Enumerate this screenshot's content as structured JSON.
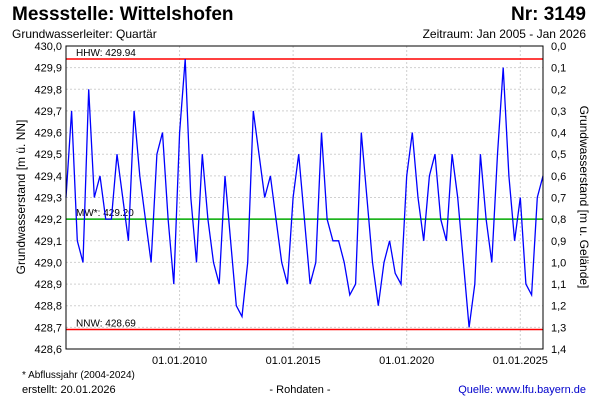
{
  "header": {
    "title": "Messstelle: Wittelshofen",
    "nr": "Nr: 3149",
    "subtitle": "Grundwasserleiter: Quartär",
    "period": "Zeitraum: Jan 2005 - Jan 2026"
  },
  "footer": {
    "footnote": "* Abflussjahr (2004-2024)",
    "created": "erstellt:  20.01.2026",
    "data_type": "- Rohdaten -",
    "source": "Quelle: www.lfu.bayern.de"
  },
  "colors": {
    "series": "#0000ff",
    "hhw": "#ff0000",
    "nnw": "#ff0000",
    "mw": "#00aa00",
    "grid": "#d0d0d0"
  },
  "chart_data": {
    "type": "line",
    "xlabel": "",
    "ylabel": "Grundwasserstand [m ü. NN]",
    "ylabel_right": "Grundwasserstand [m u. Gelände]",
    "xlim": [
      "2005-01",
      "2026-01"
    ],
    "ylim": [
      428.6,
      430.0
    ],
    "y_ticks": [
      "430,0",
      "429,9",
      "429,8",
      "429,7",
      "429,6",
      "429,5",
      "429,4",
      "429,3",
      "429,2",
      "429,1",
      "429,0",
      "428,9",
      "428,8",
      "428,7",
      "428,6"
    ],
    "y_ticks_right": [
      "0,0",
      "0,1",
      "0,2",
      "0,3",
      "0,4",
      "0,5",
      "0,6",
      "0,7",
      "0,8",
      "0,9",
      "1,0",
      "1,1",
      "1,2",
      "1,3",
      "1,4"
    ],
    "x_ticks": [
      {
        "label": "01.01.2010",
        "date": "2010-01-01"
      },
      {
        "label": "01.01.2015",
        "date": "2015-01-01"
      },
      {
        "label": "01.01.2020",
        "date": "2020-01-01"
      },
      {
        "label": "01.01.2025",
        "date": "2025-01-01"
      }
    ],
    "reference_lines": [
      {
        "label": "HHW: 429.94",
        "value": 429.94,
        "color": "#ff0000"
      },
      {
        "label": "MW*: 429.20",
        "value": 429.2,
        "color": "#00aa00"
      },
      {
        "label": "NNW: 428.69",
        "value": 428.69,
        "color": "#ff0000"
      }
    ],
    "grid": true,
    "series": [
      {
        "x": [
          "2005-01",
          "2005-04",
          "2005-07",
          "2005-10",
          "2006-01",
          "2006-04",
          "2006-07",
          "2006-10",
          "2007-01",
          "2007-04",
          "2007-07",
          "2007-10",
          "2008-01",
          "2008-04",
          "2008-07",
          "2008-10",
          "2009-01",
          "2009-04",
          "2009-07",
          "2009-10",
          "2010-01",
          "2010-04",
          "2010-07",
          "2010-10",
          "2011-01",
          "2011-04",
          "2011-07",
          "2011-10",
          "2012-01",
          "2012-04",
          "2012-07",
          "2012-10",
          "2013-01",
          "2013-04",
          "2013-07",
          "2013-10",
          "2014-01",
          "2014-04",
          "2014-07",
          "2014-10",
          "2015-01",
          "2015-04",
          "2015-07",
          "2015-10",
          "2016-01",
          "2016-04",
          "2016-07",
          "2016-10",
          "2017-01",
          "2017-04",
          "2017-07",
          "2017-10",
          "2018-01",
          "2018-04",
          "2018-07",
          "2018-10",
          "2019-01",
          "2019-04",
          "2019-07",
          "2019-10",
          "2020-01",
          "2020-04",
          "2020-07",
          "2020-10",
          "2021-01",
          "2021-04",
          "2021-07",
          "2021-10",
          "2022-01",
          "2022-04",
          "2022-07",
          "2022-10",
          "2023-01",
          "2023-04",
          "2023-07",
          "2023-10",
          "2024-01",
          "2024-04",
          "2024-07",
          "2024-10",
          "2025-01",
          "2025-04",
          "2025-07",
          "2025-10",
          "2026-01"
        ],
        "values": [
          429.3,
          429.7,
          429.1,
          429.0,
          429.8,
          429.3,
          429.4,
          429.2,
          429.2,
          429.5,
          429.3,
          429.1,
          429.7,
          429.4,
          429.2,
          429.0,
          429.5,
          429.6,
          429.2,
          428.9,
          429.6,
          429.94,
          429.3,
          429.0,
          429.5,
          429.2,
          429.0,
          428.9,
          429.4,
          429.1,
          428.8,
          428.75,
          429.0,
          429.7,
          429.5,
          429.3,
          429.4,
          429.2,
          429.0,
          428.9,
          429.3,
          429.5,
          429.2,
          428.9,
          429.0,
          429.6,
          429.2,
          429.1,
          429.1,
          429.0,
          428.85,
          428.9,
          429.6,
          429.3,
          429.0,
          428.8,
          429.0,
          429.1,
          428.95,
          428.9,
          429.4,
          429.6,
          429.3,
          429.1,
          429.4,
          429.5,
          429.2,
          429.1,
          429.5,
          429.3,
          429.0,
          428.7,
          428.9,
          429.5,
          429.2,
          429.0,
          429.5,
          429.9,
          429.4,
          429.1,
          429.3,
          428.9,
          428.85,
          429.3,
          429.4
        ]
      }
    ]
  }
}
